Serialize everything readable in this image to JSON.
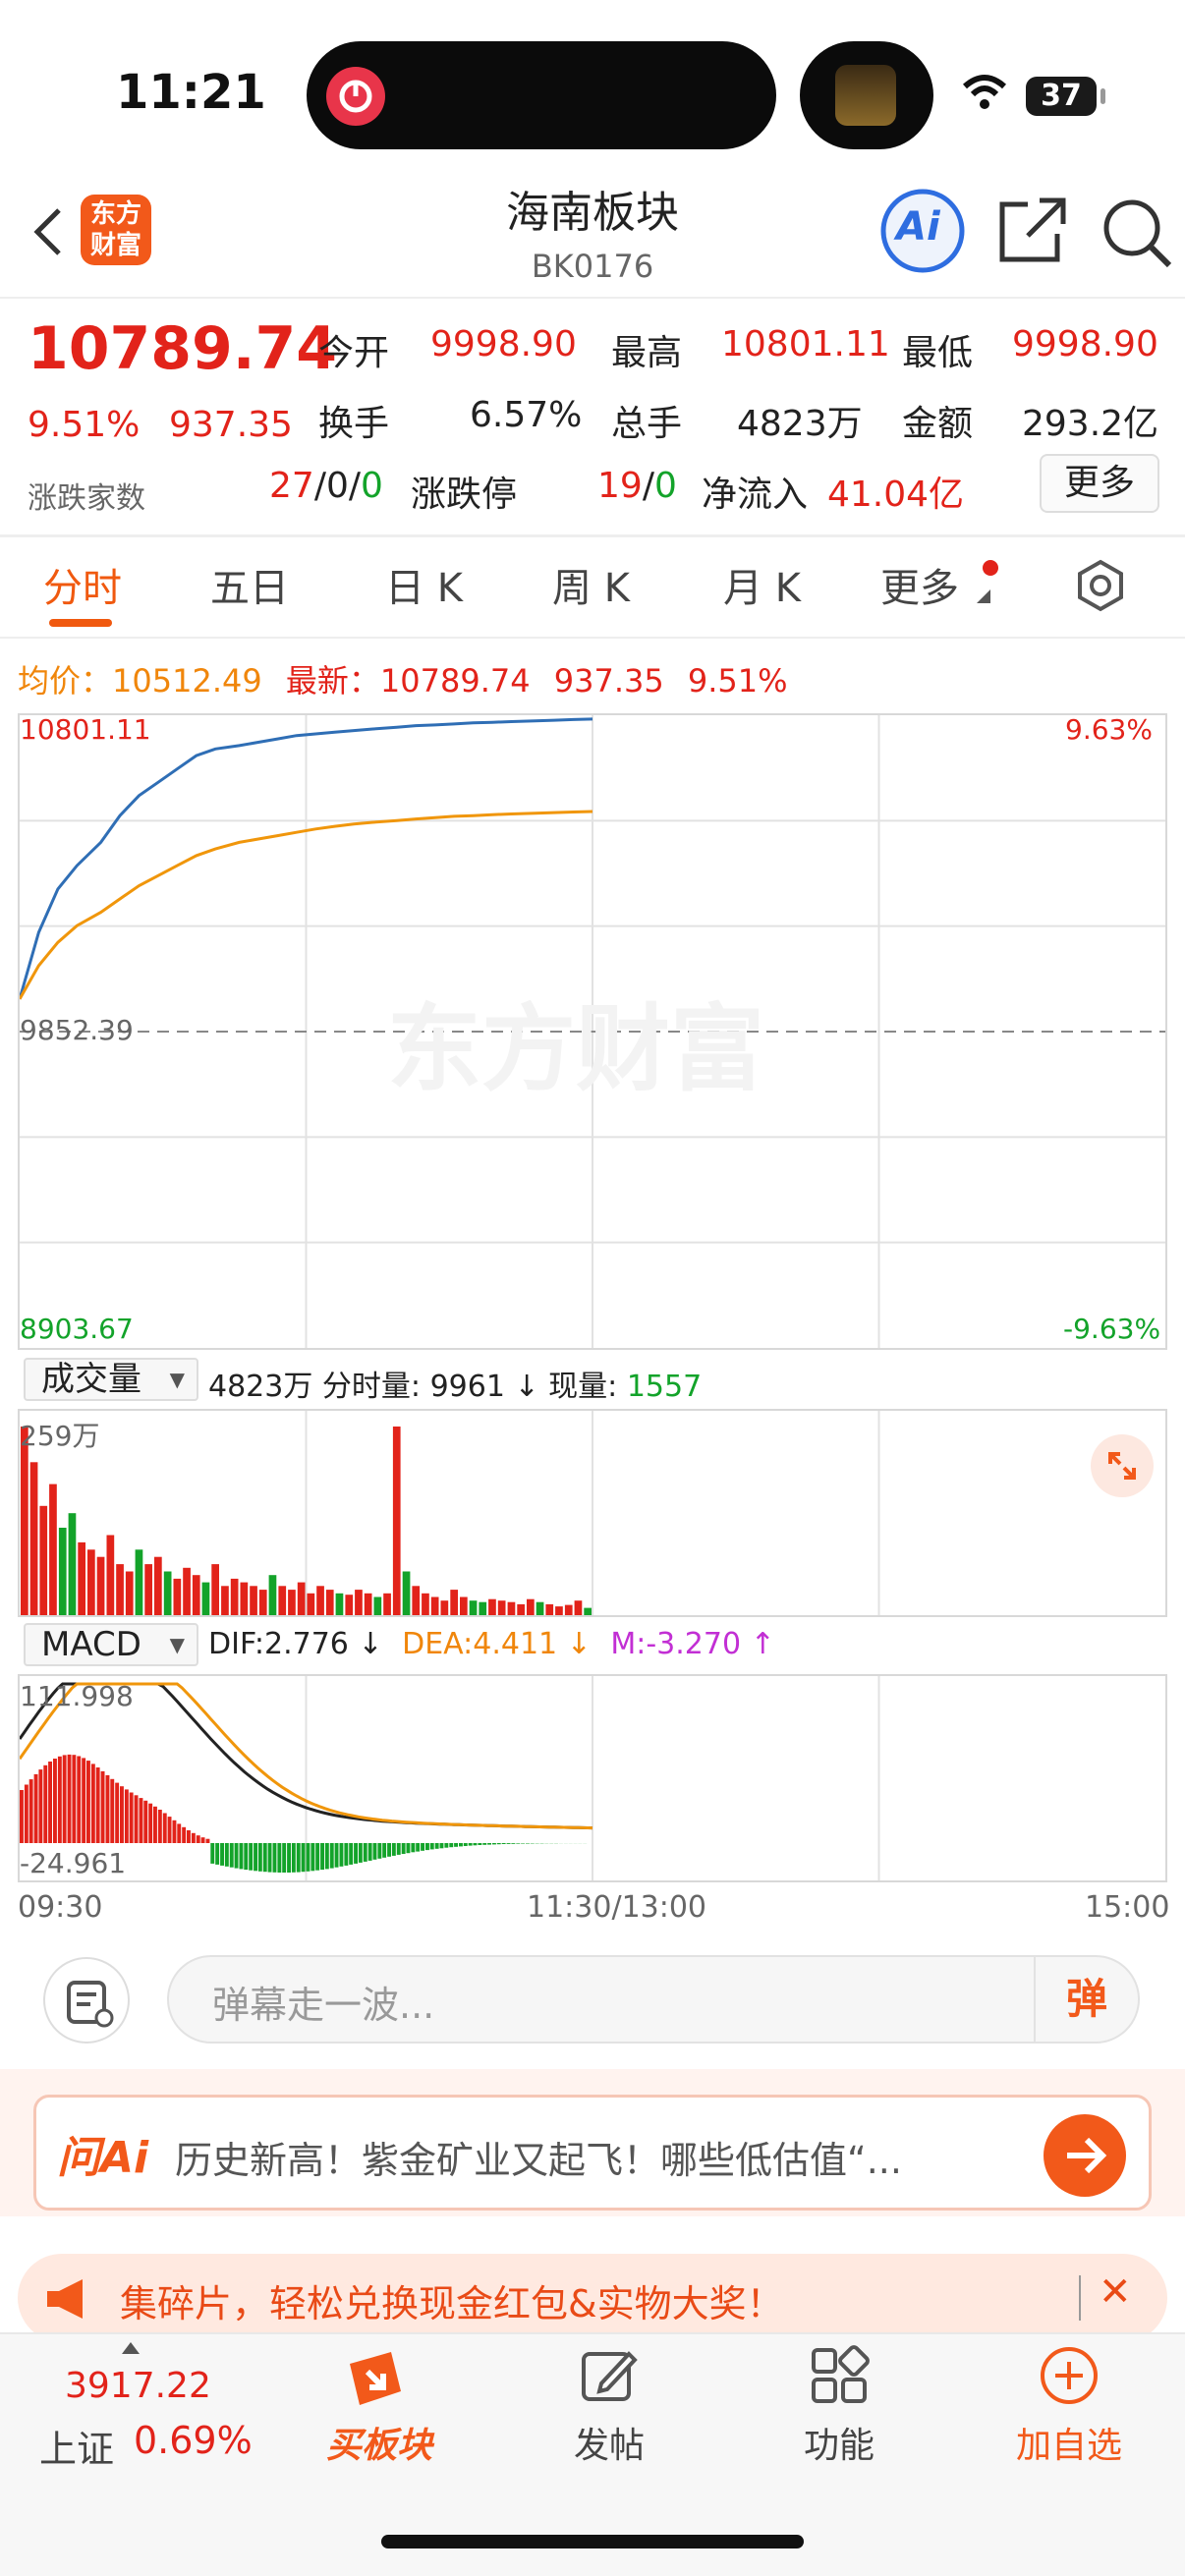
{
  "status_bar": {
    "time": "11:21",
    "battery": "37"
  },
  "header": {
    "logo_text": "东方财富",
    "title": "海南板块",
    "code": "BK0176",
    "ai_label": "Ai"
  },
  "quote": {
    "price": "10789.74",
    "pct": "9.51%",
    "change": "937.35",
    "adv_decl_label": "涨跌家数",
    "adv": "27",
    "flat": "0",
    "decl": "0",
    "sep": "/",
    "open_label": "今开",
    "open": "9998.90",
    "high_label": "最高",
    "high": "10801.11",
    "low_label": "最低",
    "low": "9998.90",
    "turnover_label": "换手",
    "turnover": "6.57%",
    "volume_label": "总手",
    "volume": "4823万",
    "amount_label": "金额",
    "amount": "293.2亿",
    "limit_label": "涨跌停",
    "limit_up": "19",
    "limit_down": "0",
    "netflow_label": "净流入",
    "netflow": "41.04亿",
    "more_label": "更多"
  },
  "tabs": [
    "分时",
    "五日",
    "日 K",
    "周 K",
    "月 K",
    "更多"
  ],
  "info_line": {
    "avg_label": "均价：",
    "avg": "10512.49",
    "latest_label": "最新：",
    "latest": "10789.74",
    "change": "937.35",
    "pct": "9.51%"
  },
  "price_chart": {
    "top_price": "10801.11",
    "mid_price": "9852.39",
    "bottom_price": "8903.67",
    "top_pct": "9.63%",
    "bottom_pct": "-9.63%",
    "watermark": "东方财富"
  },
  "volume_panel": {
    "selector": "成交量",
    "total": "4823万",
    "minute_label": "分时量:",
    "minute_value": "9961",
    "current_label": "现量:",
    "current_value": "1557",
    "max_label": "259万"
  },
  "macd_panel": {
    "selector": "MACD",
    "dif": "DIF:2.776",
    "dea": "DEA:4.411",
    "m": "M:-3.270",
    "max_label": "111.998",
    "min_label": "-24.961"
  },
  "time_axis": [
    "09:30",
    "11:30/13:00",
    "15:00"
  ],
  "comment": {
    "placeholder": "弹幕走一波...",
    "danmu_btn": "弹"
  },
  "ai_bar": {
    "logo": "问Ai",
    "text": "历史新高！紫金矿业又起飞！哪些低估值“..."
  },
  "promo": {
    "text": "集碎片，轻松兑换现金红包&实物大奖！"
  },
  "tabbar": {
    "index_value": "3917.22",
    "index_name": "上证",
    "index_pct": "0.69%",
    "buy_label": "买板块",
    "post_label": "发帖",
    "func_label": "功能",
    "add_label": "加自选"
  },
  "colors": {
    "up": "#e2231a",
    "down": "#13a32a",
    "accent": "#f2591a",
    "price_line": "#2f6eb5",
    "avg_line": "#f0960b"
  },
  "chart_data": [
    {
      "type": "line",
      "series": [
        {
          "values": [
            9950,
            10150,
            10280,
            10350,
            10420,
            10500,
            10560,
            10600,
            10640,
            10680,
            10700,
            10710,
            10720,
            10730,
            10740,
            10745,
            10750,
            10755,
            10760,
            10765,
            10770,
            10772,
            10775,
            10778,
            10780,
            10782,
            10784,
            10786,
            10788,
            10789.74
          ]
        },
        {
          "values": [
            9950,
            10050,
            10120,
            10170,
            10210,
            10250,
            10290,
            10320,
            10350,
            10380,
            10400,
            10420,
            10430,
            10440,
            10450,
            10460,
            10468,
            10475,
            10480,
            10485,
            10490,
            10494,
            10498,
            10500,
            10503,
            10505,
            10507,
            10509,
            10511,
            10512.49
          ]
        }
      ],
      "ylim": [
        8903.67,
        10801.11
      ]
    },
    {
      "type": "bar",
      "title": "成交量",
      "values": [
        259,
        210,
        150,
        180,
        120,
        140,
        100,
        90,
        80,
        110,
        70,
        60,
        90,
        70,
        80,
        60,
        50,
        65,
        55,
        45,
        70,
        40,
        50,
        45,
        40,
        35,
        55,
        40,
        35,
        45,
        30,
        40,
        35,
        30,
        28,
        35,
        30,
        25,
        30,
        259,
        60,
        40,
        30,
        25,
        20,
        35,
        25,
        20,
        18,
        22,
        20,
        18,
        15,
        22,
        18,
        15,
        12,
        14,
        20,
        10
      ]
    }
  ]
}
